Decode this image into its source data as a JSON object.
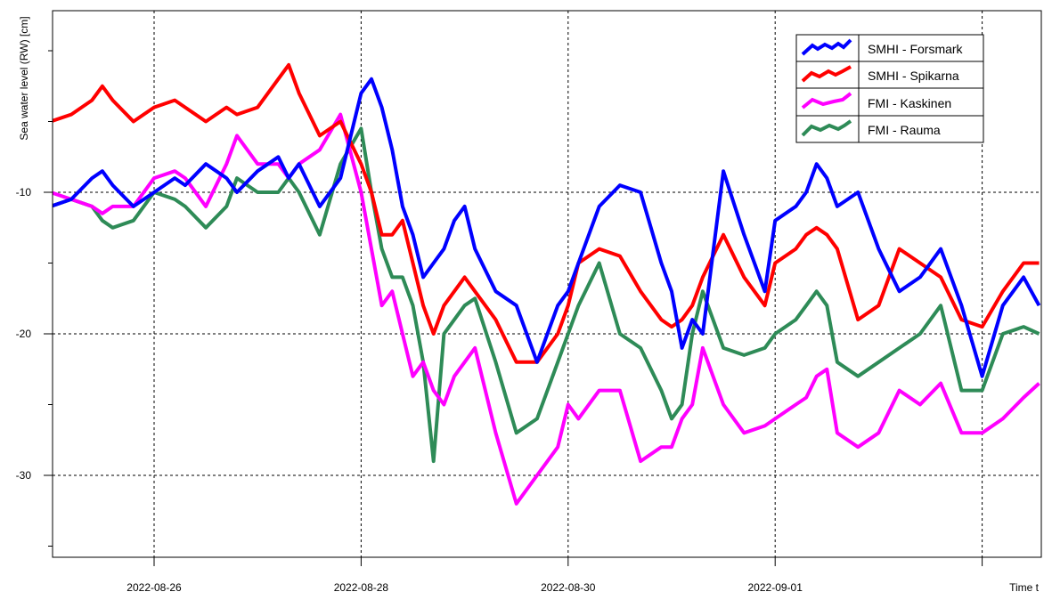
{
  "chart_data": {
    "type": "line",
    "ylabel": "Sea water level (RW) [cm]",
    "xlabel": "Time t",
    "ylim": [
      -36.0,
      3.0
    ],
    "y_ticks": [
      {
        "value": -10,
        "label": "-10"
      },
      {
        "value": -20,
        "label": "-20"
      },
      {
        "value": -30,
        "label": "-30"
      }
    ],
    "y_minor_ticks": [
      0,
      -5,
      -15,
      -25,
      -35
    ],
    "x_range": [
      0,
      9.55
    ],
    "x_ticks": [
      {
        "value": 1,
        "label": "2022-08-26"
      },
      {
        "value": 3,
        "label": "2022-08-28"
      },
      {
        "value": 5,
        "label": "2022-08-30"
      },
      {
        "value": 7,
        "label": "2022-09-01"
      },
      {
        "value": 9,
        "label": ""
      }
    ],
    "grid": true,
    "legend_position": "top-right",
    "series": [
      {
        "name": "SMHI - Forsmark",
        "color": "#0000ff",
        "x": [
          0,
          0.2,
          0.4,
          0.5,
          0.6,
          0.8,
          1.0,
          1.2,
          1.3,
          1.5,
          1.7,
          1.8,
          2.0,
          2.2,
          2.3,
          2.4,
          2.6,
          2.8,
          3.0,
          3.1,
          3.2,
          3.3,
          3.4,
          3.5,
          3.6,
          3.7,
          3.8,
          3.9,
          4.0,
          4.1,
          4.3,
          4.5,
          4.7,
          4.9,
          5.0,
          5.1,
          5.3,
          5.5,
          5.7,
          5.9,
          6.0,
          6.1,
          6.2,
          6.3,
          6.5,
          6.7,
          6.9,
          7.0,
          7.2,
          7.3,
          7.4,
          7.5,
          7.6,
          7.8,
          8.0,
          8.2,
          8.4,
          8.6,
          8.8,
          9.0,
          9.2,
          9.4,
          9.55
        ],
        "values": [
          -11,
          -10.5,
          -9,
          -8.5,
          -9.5,
          -11,
          -10,
          -9,
          -9.5,
          -8,
          -9,
          -10,
          -8.5,
          -7.5,
          -9,
          -8,
          -11,
          -9,
          -3,
          -2,
          -4,
          -7,
          -11,
          -13,
          -16,
          -15,
          -14,
          -12,
          -11,
          -14,
          -17,
          -18,
          -22,
          -18,
          -17,
          -15,
          -11,
          -9.5,
          -10,
          -15,
          -17,
          -21,
          -19,
          -20,
          -8.5,
          -13,
          -17,
          -12,
          -11,
          -10,
          -8,
          -9,
          -11,
          -10,
          -14,
          -17,
          -16,
          -14,
          -18,
          -23,
          -18,
          -16,
          -18
        ]
      },
      {
        "name": "SMHI - Spikarna",
        "color": "#ff0000",
        "x": [
          0,
          0.2,
          0.4,
          0.5,
          0.6,
          0.8,
          1.0,
          1.2,
          1.3,
          1.5,
          1.7,
          1.8,
          2.0,
          2.2,
          2.3,
          2.4,
          2.6,
          2.8,
          3.0,
          3.1,
          3.2,
          3.3,
          3.4,
          3.5,
          3.6,
          3.7,
          3.8,
          3.9,
          4.0,
          4.1,
          4.3,
          4.5,
          4.7,
          4.9,
          5.0,
          5.1,
          5.3,
          5.5,
          5.7,
          5.9,
          6.0,
          6.1,
          6.2,
          6.3,
          6.5,
          6.7,
          6.9,
          7.0,
          7.2,
          7.3,
          7.4,
          7.5,
          7.6,
          7.8,
          8.0,
          8.2,
          8.4,
          8.6,
          8.8,
          9.0,
          9.2,
          9.4,
          9.55
        ],
        "values": [
          -5,
          -4.5,
          -3.5,
          -2.5,
          -3.5,
          -5,
          -4,
          -3.5,
          -4,
          -5,
          -4,
          -4.5,
          -4,
          -2,
          -1,
          -3,
          -6,
          -5,
          -8,
          -10,
          -13,
          -13,
          -12,
          -15,
          -18,
          -20,
          -18,
          -17,
          -16,
          -17,
          -19,
          -22,
          -22,
          -20,
          -18,
          -15,
          -14,
          -14.5,
          -17,
          -19,
          -19.5,
          -19,
          -18,
          -16,
          -13,
          -16,
          -18,
          -15,
          -14,
          -13,
          -12.5,
          -13,
          -14,
          -19,
          -18,
          -14,
          -15,
          -16,
          -19,
          -19.5,
          -17,
          -15,
          -15
        ]
      },
      {
        "name": "FMI - Kaskinen",
        "color": "#ff00ff",
        "x": [
          0,
          0.2,
          0.4,
          0.5,
          0.6,
          0.8,
          1.0,
          1.2,
          1.3,
          1.5,
          1.7,
          1.8,
          2.0,
          2.2,
          2.3,
          2.4,
          2.6,
          2.8,
          3.0,
          3.1,
          3.2,
          3.3,
          3.4,
          3.5,
          3.6,
          3.7,
          3.8,
          3.9,
          4.0,
          4.1,
          4.3,
          4.5,
          4.7,
          4.9,
          5.0,
          5.1,
          5.3,
          5.5,
          5.7,
          5.9,
          6.0,
          6.1,
          6.2,
          6.3,
          6.5,
          6.7,
          6.9,
          7.0,
          7.2,
          7.3,
          7.4,
          7.5,
          7.6,
          7.8,
          8.0,
          8.2,
          8.4,
          8.6,
          8.8,
          9.0,
          9.2,
          9.4,
          9.55
        ],
        "values": [
          -10,
          -10.5,
          -11,
          -11.5,
          -11,
          -11,
          -9,
          -8.5,
          -9,
          -11,
          -8,
          -6,
          -8,
          -8,
          -9,
          -8,
          -7,
          -4.5,
          -10,
          -14,
          -18,
          -17,
          -20,
          -23,
          -22,
          -24,
          -25,
          -23,
          -22,
          -21,
          -27,
          -32,
          -30,
          -28,
          -25,
          -26,
          -24,
          -24,
          -29,
          -28,
          -28,
          -26,
          -25,
          -21,
          -25,
          -27,
          -26.5,
          -26,
          -25,
          -24.5,
          -23,
          -22.5,
          -27,
          -28,
          -27,
          -24,
          -25,
          -23.5,
          -27,
          -27,
          -26,
          -24.5,
          -23.5
        ]
      },
      {
        "name": "FMI - Rauma",
        "color": "#2e8b57",
        "x": [
          0,
          0.2,
          0.4,
          0.5,
          0.6,
          0.8,
          1.0,
          1.2,
          1.3,
          1.5,
          1.7,
          1.8,
          2.0,
          2.2,
          2.3,
          2.4,
          2.6,
          2.8,
          3.0,
          3.1,
          3.2,
          3.3,
          3.4,
          3.5,
          3.6,
          3.7,
          3.8,
          3.9,
          4.0,
          4.1,
          4.3,
          4.5,
          4.7,
          4.9,
          5.0,
          5.1,
          5.3,
          5.5,
          5.7,
          5.9,
          6.0,
          6.1,
          6.2,
          6.3,
          6.5,
          6.7,
          6.9,
          7.0,
          7.2,
          7.3,
          7.4,
          7.5,
          7.6,
          7.8,
          8.0,
          8.2,
          8.4,
          8.6,
          8.8,
          9.0,
          9.2,
          9.4,
          9.55
        ],
        "values": [
          -11,
          -10.5,
          -11,
          -12,
          -12.5,
          -12,
          -10,
          -10.5,
          -11,
          -12.5,
          -11,
          -9,
          -10,
          -10,
          -9,
          -10,
          -13,
          -8,
          -5.5,
          -10,
          -14,
          -16,
          -16,
          -18,
          -22,
          -29,
          -20,
          -19,
          -18,
          -17.5,
          -22,
          -27,
          -26,
          -22,
          -20,
          -18,
          -15,
          -20,
          -21,
          -24,
          -26,
          -25,
          -20,
          -17,
          -21,
          -21.5,
          -21,
          -20,
          -19,
          -18,
          -17,
          -18,
          -22,
          -23,
          -22,
          -21,
          -20,
          -18,
          -24,
          -24,
          -20,
          -19.5,
          -20
        ]
      }
    ]
  }
}
